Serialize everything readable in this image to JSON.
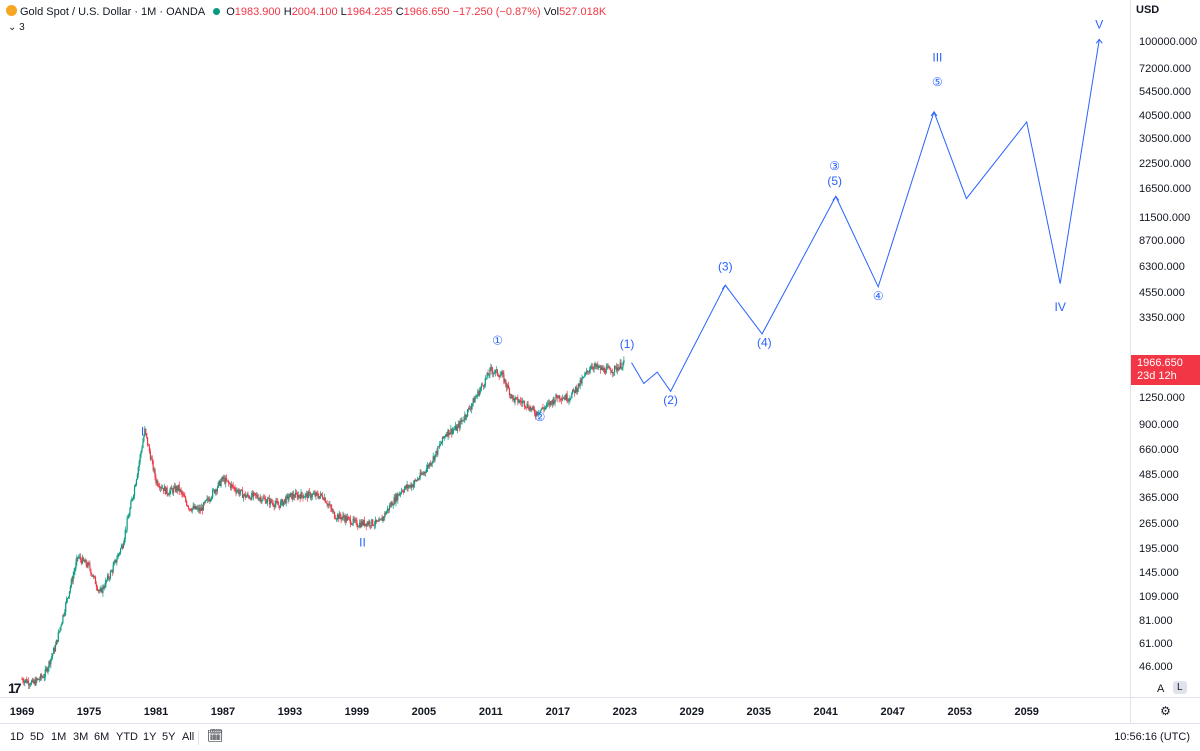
{
  "header": {
    "title": "Gold Spot / U.S. Dollar · 1M · OANDA",
    "o_label": "O",
    "o": "1983.900",
    "h_label": "H",
    "h": "2004.100",
    "l_label": "L",
    "l": "1964.235",
    "c_label": "C",
    "c": "1966.650",
    "change": "−17.250 (−0.87%)",
    "vol_label": "Vol",
    "vol": "527.018K",
    "indicators_count": "3"
  },
  "price_axis": {
    "currency": "USD",
    "last_price": "1966.650",
    "countdown": "23d 12h",
    "auto_label": "A",
    "log_label": "L"
  },
  "bottom_bar": {
    "timeframes": [
      "1D",
      "5D",
      "1M",
      "3M",
      "6M",
      "YTD",
      "1Y",
      "5Y",
      "All"
    ],
    "clock": "10:56:16 (UTC)"
  },
  "colors": {
    "projection": "#2962ff",
    "up_candle": "#089981",
    "down_candle": "#f23645",
    "last_price_bg": "#f23645"
  },
  "chart_data": {
    "type": "line",
    "title": "Gold Spot / U.S. Dollar · 1M · OANDA",
    "scale": "log",
    "ylim": [
      35,
      130000
    ],
    "xlim": [
      1969,
      2067
    ],
    "y_ticks": [
      "100000.000",
      "72000.000",
      "54500.000",
      "40500.000",
      "30500.000",
      "22500.000",
      "16500.000",
      "11500.000",
      "8700.000",
      "6300.000",
      "4550.000",
      "3350.000",
      "1250.000",
      "900.000",
      "660.000",
      "485.000",
      "365.000",
      "265.000",
      "195.000",
      "145.000",
      "109.000",
      "81.000",
      "61.000",
      "46.000"
    ],
    "y_tick_values": [
      100000,
      72000,
      54500,
      40500,
      30500,
      22500,
      16500,
      11500,
      8700,
      6300,
      4550,
      3350,
      1250,
      900,
      660,
      485,
      365,
      265,
      195,
      145,
      109,
      81,
      61,
      46
    ],
    "x_ticks": [
      "1969",
      "1975",
      "1981",
      "1987",
      "1993",
      "1999",
      "2005",
      "2011",
      "2017",
      "2023",
      "2029",
      "2035",
      "2041",
      "2047",
      "2053",
      "2059"
    ],
    "series": [
      {
        "type": "line",
        "values": [
          [
            1969,
            40
          ],
          [
            1970,
            38
          ],
          [
            1971,
            42
          ],
          [
            1972,
            60
          ],
          [
            1973,
            105
          ],
          [
            1974,
            180
          ],
          [
            1975,
            160
          ],
          [
            1976,
            115
          ],
          [
            1977,
            150
          ],
          [
            1978,
            210
          ],
          [
            1979,
            400
          ],
          [
            1980,
            850
          ],
          [
            1981,
            460
          ],
          [
            1982,
            400
          ],
          [
            1983,
            420
          ],
          [
            1984,
            330
          ],
          [
            1985,
            320
          ],
          [
            1986,
            390
          ],
          [
            1987,
            470
          ],
          [
            1988,
            420
          ],
          [
            1989,
            380
          ],
          [
            1990,
            380
          ],
          [
            1991,
            360
          ],
          [
            1992,
            340
          ],
          [
            1993,
            380
          ],
          [
            1994,
            385
          ],
          [
            1995,
            385
          ],
          [
            1996,
            380
          ],
          [
            1997,
            300
          ],
          [
            1998,
            290
          ],
          [
            1999,
            270
          ],
          [
            2000,
            275
          ],
          [
            2001,
            272
          ],
          [
            2002,
            340
          ],
          [
            2003,
            410
          ],
          [
            2004,
            440
          ],
          [
            2005,
            510
          ],
          [
            2006,
            630
          ],
          [
            2007,
            830
          ],
          [
            2008,
            880
          ],
          [
            2009,
            1100
          ],
          [
            2010,
            1400
          ],
          [
            2011,
            1800
          ],
          [
            2012,
            1680
          ],
          [
            2013,
            1250
          ],
          [
            2014,
            1200
          ],
          [
            2015,
            1060
          ],
          [
            2016,
            1150
          ],
          [
            2017,
            1300
          ],
          [
            2018,
            1280
          ],
          [
            2019,
            1520
          ],
          [
            2020,
            1900
          ],
          [
            2021,
            1800
          ],
          [
            2022,
            1800
          ],
          [
            2023,
            1966.65
          ]
        ]
      },
      {
        "type": "line",
        "values": [
          [
            2023.6,
            1966.65
          ],
          [
            2024.7,
            1520
          ],
          [
            2025.9,
            1750
          ],
          [
            2027.1,
            1380
          ],
          [
            2032.0,
            5100
          ],
          [
            2035.3,
            2800
          ],
          [
            2041.9,
            15200
          ],
          [
            2045.7,
            5000
          ],
          [
            2050.7,
            43000
          ],
          [
            2053.6,
            14800
          ],
          [
            2059.0,
            38000
          ],
          [
            2062.0,
            5200
          ],
          [
            2065.5,
            105000
          ]
        ]
      }
    ],
    "annotations": [
      {
        "label": "I",
        "x": 1979.8,
        "y": 800
      },
      {
        "label": "II",
        "x": 1999.5,
        "y": 205
      },
      {
        "label": "III",
        "x": 2051.0,
        "y": 80000
      },
      {
        "label": "IV",
        "x": 2062.0,
        "y": 3700
      },
      {
        "label": "V",
        "x": 2065.5,
        "y": 120000
      },
      {
        "label": "①",
        "x": 2011.6,
        "y": 2450
      },
      {
        "label": "②",
        "x": 2015.4,
        "y": 960
      },
      {
        "label": "③",
        "x": 2041.8,
        "y": 21000
      },
      {
        "label": "④",
        "x": 2045.7,
        "y": 4250
      },
      {
        "label": "⑤",
        "x": 2051.0,
        "y": 59000
      },
      {
        "label": "(1)",
        "x": 2023.2,
        "y": 2350
      },
      {
        "label": "(2)",
        "x": 2027.1,
        "y": 1180
      },
      {
        "label": "(3)",
        "x": 2032.0,
        "y": 6100
      },
      {
        "label": "(4)",
        "x": 2035.5,
        "y": 2400
      },
      {
        "label": "(5)",
        "x": 2041.8,
        "y": 17500
      }
    ]
  }
}
